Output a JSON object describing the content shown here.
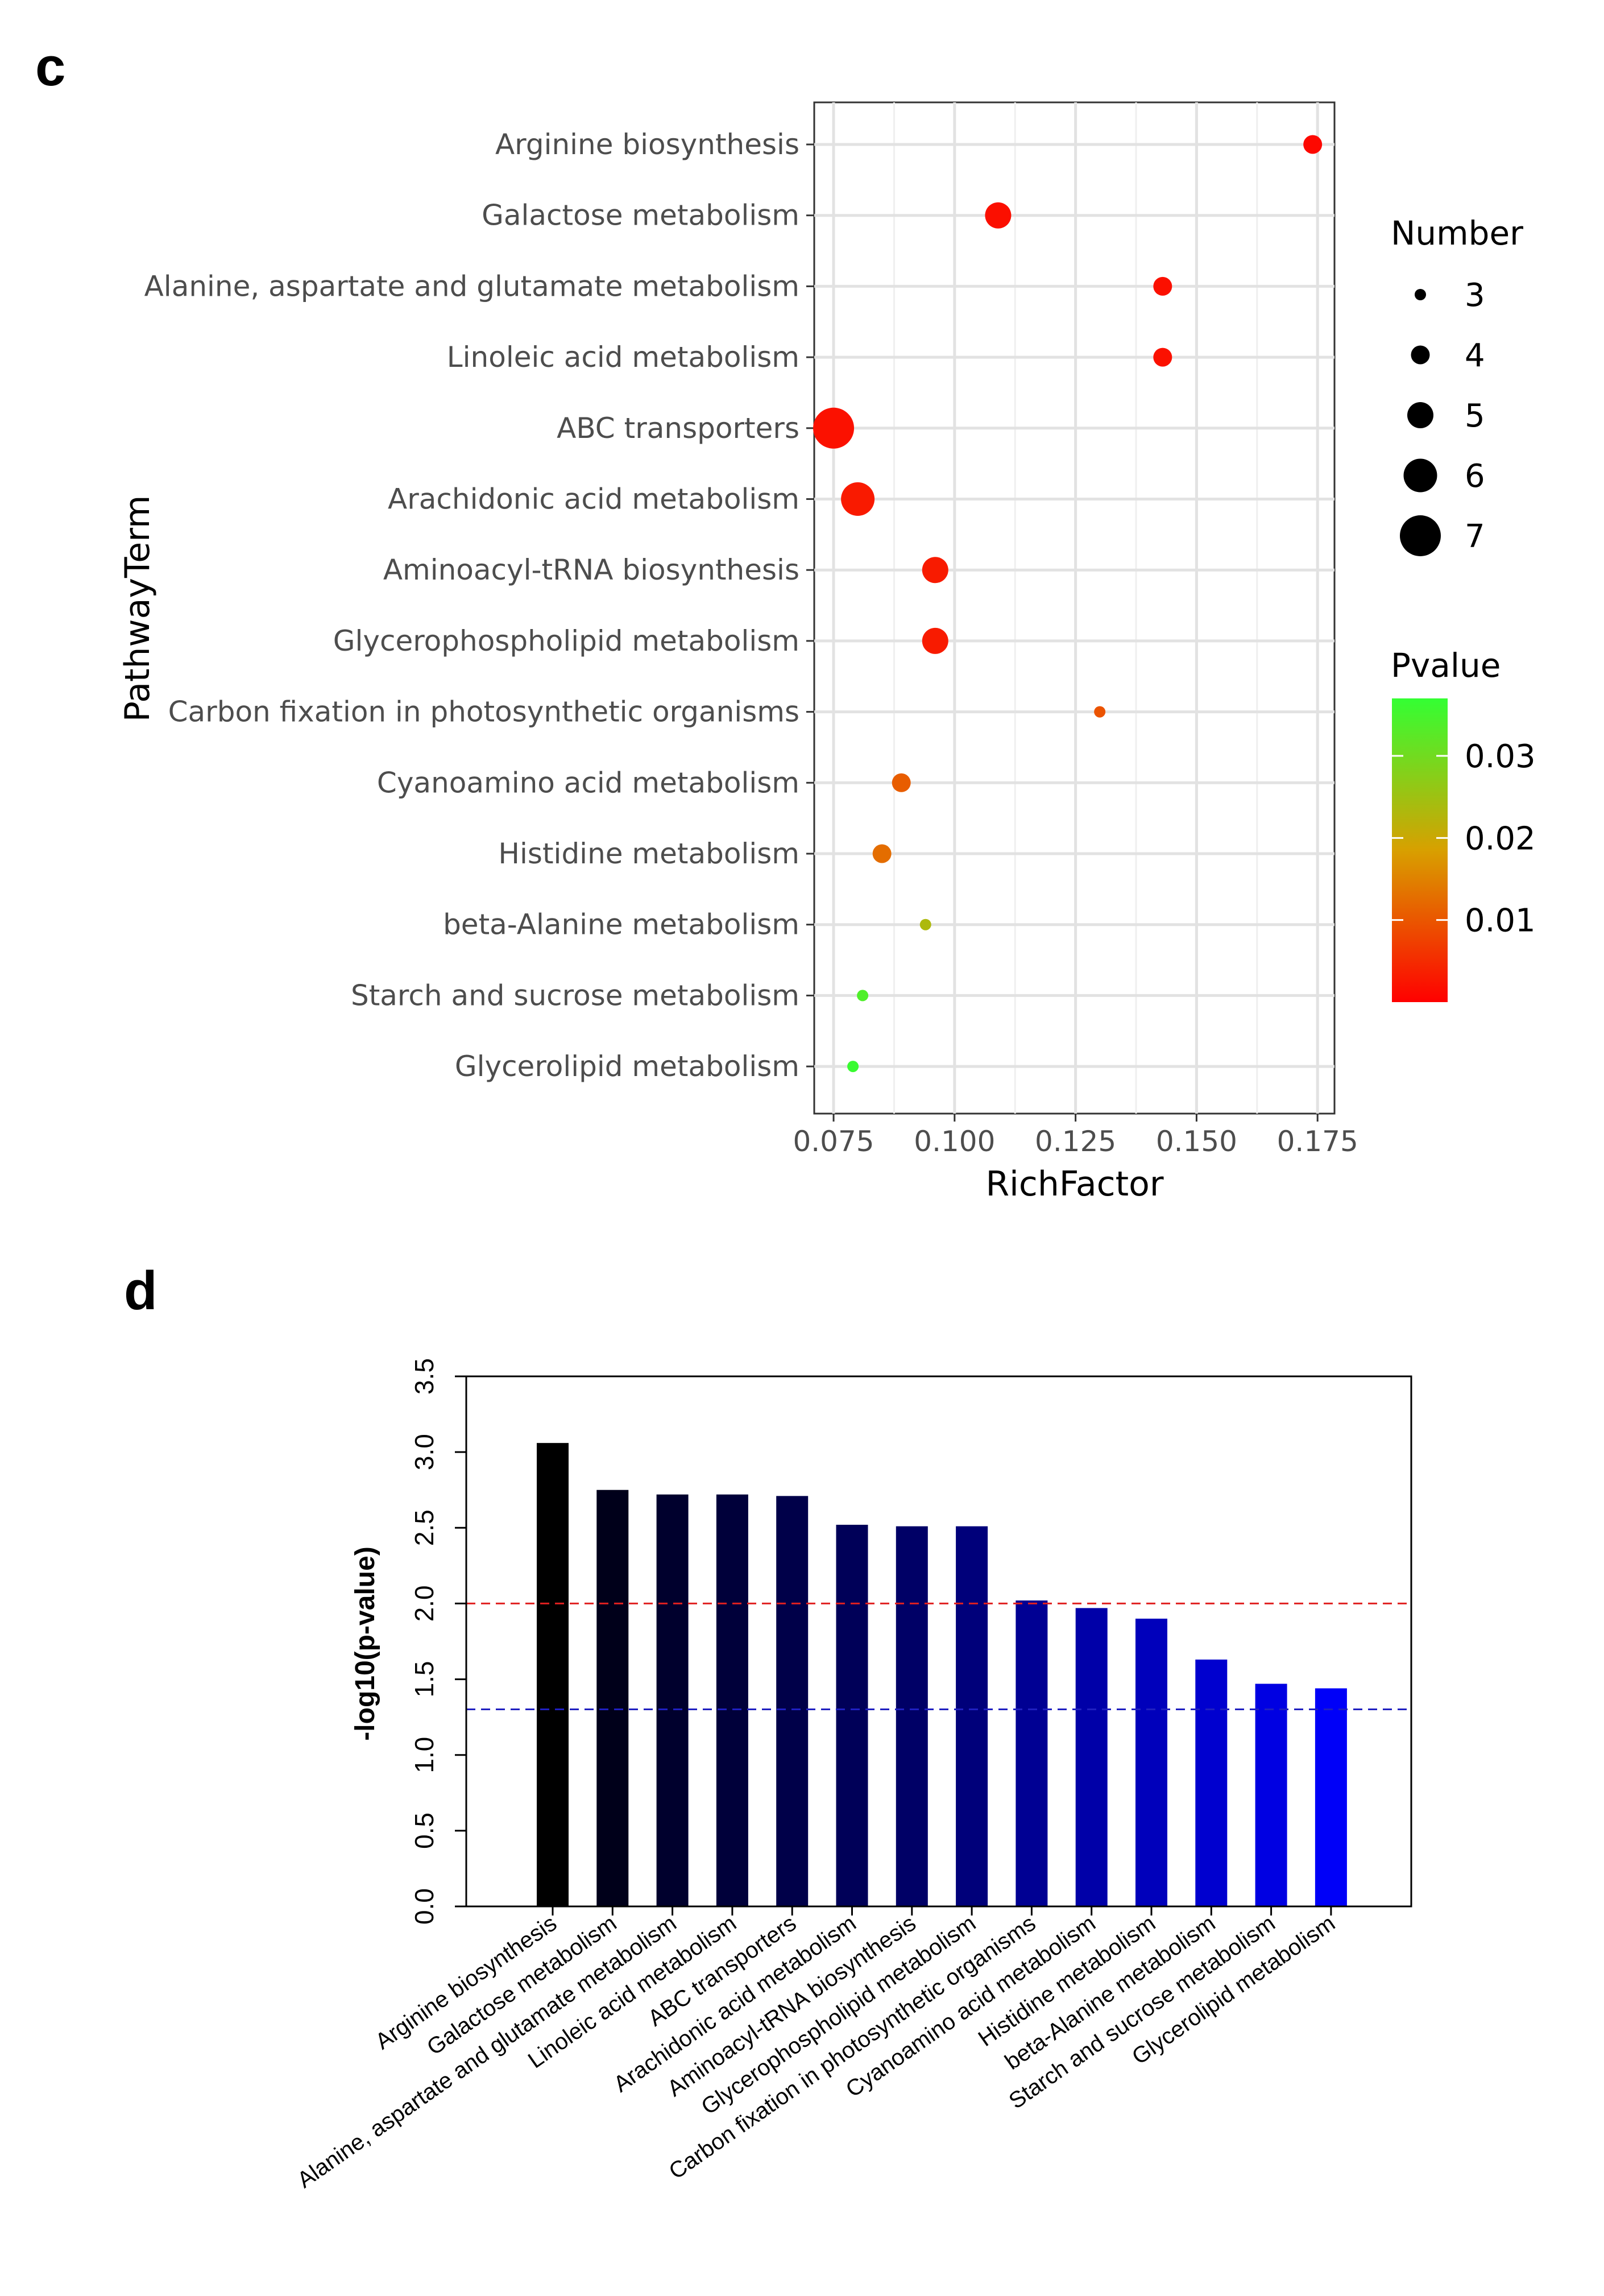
{
  "panels": {
    "c_label": "c",
    "d_label": "d"
  },
  "chart_data": [
    {
      "type": "scatter",
      "xlabel": "RichFactor",
      "ylabel": "PathwayTerm",
      "xlim": [
        0.071,
        0.1785
      ],
      "xticks": [
        0.075,
        0.1,
        0.125,
        0.15,
        0.175
      ],
      "xtick_labels": [
        "0.075",
        "0.100",
        "0.125",
        "0.150",
        "0.175"
      ],
      "grid": true,
      "categories": [
        "Arginine biosynthesis",
        "Galactose metabolism",
        "Alanine, aspartate and glutamate metabolism",
        "Linoleic acid metabolism",
        "ABC transporters",
        "Arachidonic acid metabolism",
        "Aminoacyl-tRNA biosynthesis",
        "Glycerophospholipid metabolism",
        "Carbon fixation in photosynthetic organisms",
        "Cyanoamino acid metabolism",
        "Histidine metabolism",
        "beta-Alanine metabolism",
        "Starch and sucrose metabolism",
        "Glycerolipid metabolism"
      ],
      "rich_factor": [
        0.174,
        0.109,
        0.143,
        0.143,
        0.075,
        0.08,
        0.096,
        0.096,
        0.13,
        0.089,
        0.085,
        0.094,
        0.081,
        0.079
      ],
      "number": [
        4,
        5,
        4,
        4,
        7,
        6,
        5,
        5,
        3,
        4,
        4,
        3,
        3,
        3
      ],
      "pvalue": [
        0.00088,
        0.00178,
        0.0019,
        0.00191,
        0.00195,
        0.00302,
        0.00309,
        0.0031,
        0.0096,
        0.0107,
        0.0126,
        0.0233,
        0.0339,
        0.0363
      ],
      "size_legend": {
        "title": "Number",
        "values": [
          3,
          4,
          5,
          6,
          7
        ],
        "labels": [
          "3",
          "4",
          "5",
          "6",
          "7"
        ]
      },
      "color_legend": {
        "title": "Pvalue",
        "range": [
          0.0,
          0.037
        ],
        "ticks": [
          0.01,
          0.02,
          0.03
        ],
        "tick_labels": [
          "0.01",
          "0.02",
          "0.03"
        ],
        "low_color": "#ff0000",
        "mid_color": "#d8a000",
        "high_color": "#33ff33"
      },
      "legend_placement": "right"
    },
    {
      "type": "bar",
      "ylabel": "-log10(p-value)",
      "ylim": [
        0,
        3.5
      ],
      "yticks": [
        0.0,
        0.5,
        1.0,
        1.5,
        2.0,
        2.5,
        3.0,
        3.5
      ],
      "ytick_labels": [
        "0.0",
        "0.5",
        "1.0",
        "1.5",
        "2.0",
        "2.5",
        "3.0",
        "3.5"
      ],
      "categories": [
        "Arginine biosynthesis",
        "Galactose metabolism",
        "Alanine, aspartate and glutamate metabolism",
        "Linoleic acid metabolism",
        "ABC transporters",
        "Arachidonic acid metabolism",
        "Aminoacyl-tRNA biosynthesis",
        "Glycerophospholipid metabolism",
        "Carbon fixation in photosynthetic organisms",
        "Cyanoamino acid metabolism",
        "Histidine metabolism",
        "beta-Alanine metabolism",
        "Starch and sucrose metabolism",
        "Glycerolipid metabolism"
      ],
      "values": [
        3.06,
        2.75,
        2.72,
        2.72,
        2.71,
        2.52,
        2.51,
        2.51,
        2.02,
        1.97,
        1.9,
        1.63,
        1.47,
        1.44
      ],
      "bar_colors": [
        "#000000",
        "#00001a",
        "#00002d",
        "#00003a",
        "#000049",
        "#000058",
        "#000066",
        "#00007a",
        "#000093",
        "#0000a8",
        "#0000bb",
        "#0000cf",
        "#0000e2",
        "#0000f8"
      ],
      "reference_lines": [
        {
          "value": 2.0,
          "color": "#e02020"
        },
        {
          "value": 1.301,
          "color": "#2020c0"
        }
      ],
      "grid": false
    }
  ]
}
